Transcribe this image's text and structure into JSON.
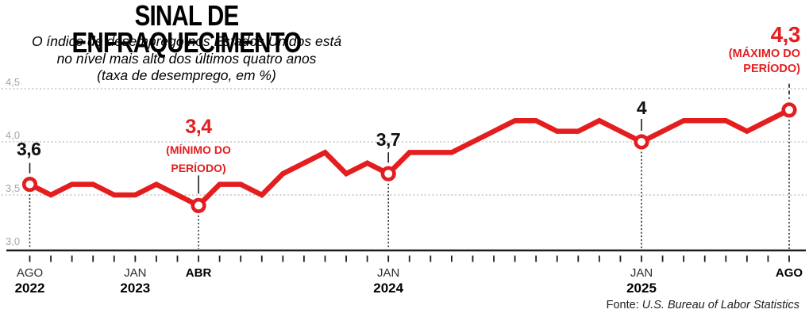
{
  "header": {
    "title": "SINAL DE ENFRAQUECIMENTO",
    "subtitle_line1": "O índice de desemprego nos Estados Unidos está",
    "subtitle_line2": "no nível mais alto dos últimos quatro anos",
    "subtitle_line3": "(taxa de desemprego, em %)"
  },
  "chart_data": {
    "type": "line",
    "title": "SINAL DE ENFRAQUECIMENTO",
    "unit": "taxa de desemprego, em %",
    "ylim": [
      3.0,
      4.5
    ],
    "grid_values": [
      4.5,
      4.0,
      3.5
    ],
    "yticks": [
      {
        "value": 4.5,
        "label": "4,5"
      },
      {
        "value": 4.0,
        "label": "4,0"
      },
      {
        "value": 3.5,
        "label": "3,5"
      },
      {
        "value": 3.0,
        "label": "3,0"
      }
    ],
    "months": [
      "ago/22",
      "set/22",
      "out/22",
      "nov/22",
      "dez/22",
      "jan/23",
      "fev/23",
      "mar/23",
      "abr/23",
      "mai/23",
      "jun/23",
      "jul/23",
      "ago/23",
      "set/23",
      "out/23",
      "nov/23",
      "dez/23",
      "jan/24",
      "fev/24",
      "mar/24",
      "abr/24",
      "mai/24",
      "jun/24",
      "jul/24",
      "ago/24",
      "set/24",
      "out/24",
      "nov/24",
      "dez/24",
      "jan/25",
      "fev/25",
      "mar/25",
      "abr/25",
      "mai/25",
      "jun/25",
      "jul/25",
      "ago/25"
    ],
    "values": [
      3.6,
      3.5,
      3.6,
      3.6,
      3.5,
      3.5,
      3.6,
      3.5,
      3.4,
      3.6,
      3.6,
      3.5,
      3.7,
      3.8,
      3.9,
      3.7,
      3.8,
      3.7,
      3.9,
      3.9,
      3.9,
      4.0,
      4.1,
      4.2,
      4.2,
      4.1,
      4.1,
      4.2,
      4.1,
      4.0,
      4.1,
      4.2,
      4.2,
      4.2,
      4.1,
      4.2,
      4.3
    ],
    "xticks": [
      {
        "month": 0,
        "label": "AGO",
        "year": "2022",
        "bold": false
      },
      {
        "month": 5,
        "label": "JAN",
        "year": "2023",
        "bold": false
      },
      {
        "month": 8,
        "label": "ABR",
        "bold": true
      },
      {
        "month": 17,
        "label": "JAN",
        "year": "2024",
        "bold": false
      },
      {
        "month": 29,
        "label": "JAN",
        "year": "2025",
        "bold": false
      },
      {
        "month": 36,
        "label": "AGO",
        "bold": true
      }
    ],
    "highlights": [
      {
        "month": 0,
        "value": 3.6,
        "label": "3,6"
      },
      {
        "month": 8,
        "value": 3.4,
        "label": "3,4",
        "note": [
          "(MÍNIMO DO",
          "PERÍODO)"
        ]
      },
      {
        "month": 17,
        "value": 3.7,
        "label": "3,7"
      },
      {
        "month": 29,
        "value": 4.0,
        "label": "4"
      },
      {
        "month": 36,
        "value": 4.3,
        "label": "4,3",
        "note": [
          "(MÁXIMO DO",
          "PERÍODO)"
        ]
      }
    ]
  },
  "source": {
    "prefix": "Fonte:",
    "text": "U.S. Bureau of Labor Statistics"
  },
  "colors": {
    "accent_red": "#e41d1f",
    "axis": "#1d1d1b",
    "grid": "#c4c4c4",
    "y_label": "#a6a6a6",
    "month_label": "#2e2e2e"
  }
}
